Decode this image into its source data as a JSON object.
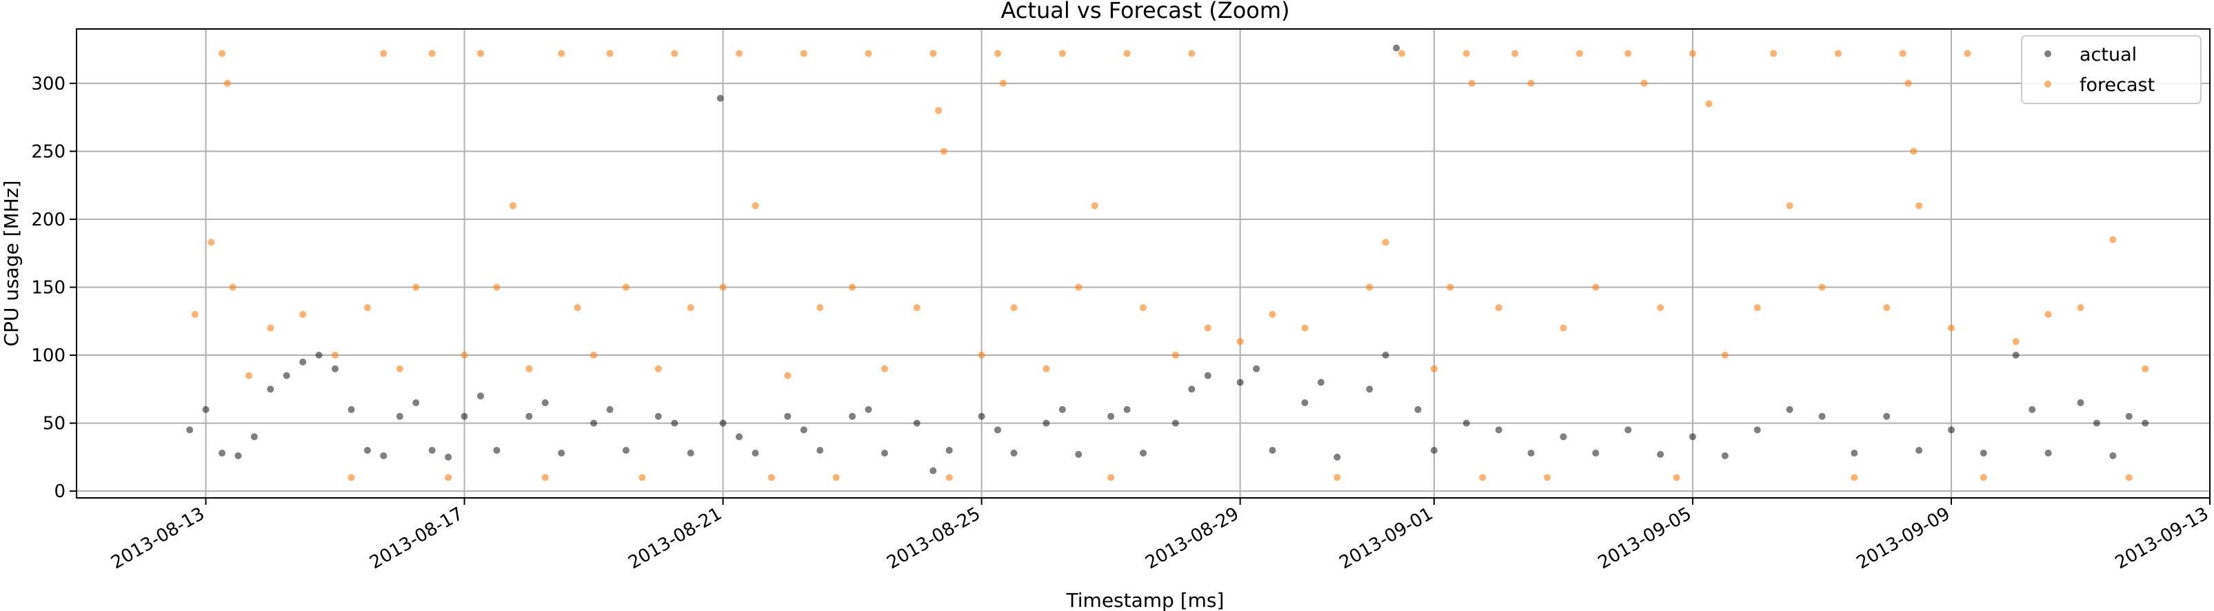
{
  "chart_data": {
    "type": "scatter",
    "title": "Actual vs Forecast (Zoom)",
    "xlabel": "Timestamp [ms]",
    "ylabel": "CPU usage [MHz]",
    "xlim": [
      "2013-08-11",
      "2013-09-13"
    ],
    "ylim": [
      -5,
      340
    ],
    "x_ticks": [
      "2013-08-13",
      "2013-08-17",
      "2013-08-21",
      "2013-08-25",
      "2013-08-29",
      "2013-09-01",
      "2013-09-05",
      "2013-09-09",
      "2013-09-13"
    ],
    "y_ticks": [
      0,
      50,
      100,
      150,
      200,
      250,
      300
    ],
    "grid": true,
    "legend_position": "top-right",
    "series": [
      {
        "name": "actual",
        "color": "#000000",
        "points": [
          [
            "2013-08-12 18:00",
            45
          ],
          [
            "2013-08-13 00:00",
            60
          ],
          [
            "2013-08-13 06:00",
            28
          ],
          [
            "2013-08-13 12:00",
            26
          ],
          [
            "2013-08-13 18:00",
            40
          ],
          [
            "2013-08-14 00:00",
            75
          ],
          [
            "2013-08-14 06:00",
            85
          ],
          [
            "2013-08-14 12:00",
            95
          ],
          [
            "2013-08-14 18:00",
            100
          ],
          [
            "2013-08-15 00:00",
            90
          ],
          [
            "2013-08-15 06:00",
            60
          ],
          [
            "2013-08-15 12:00",
            30
          ],
          [
            "2013-08-15 18:00",
            26
          ],
          [
            "2013-08-16 00:00",
            55
          ],
          [
            "2013-08-16 06:00",
            65
          ],
          [
            "2013-08-16 12:00",
            30
          ],
          [
            "2013-08-16 18:00",
            25
          ],
          [
            "2013-08-17 00:00",
            55
          ],
          [
            "2013-08-17 06:00",
            70
          ],
          [
            "2013-08-17 12:00",
            30
          ],
          [
            "2013-08-18 00:00",
            55
          ],
          [
            "2013-08-18 06:00",
            65
          ],
          [
            "2013-08-18 12:00",
            28
          ],
          [
            "2013-08-19 00:00",
            50
          ],
          [
            "2013-08-19 06:00",
            60
          ],
          [
            "2013-08-19 12:00",
            30
          ],
          [
            "2013-08-20 00:00",
            55
          ],
          [
            "2013-08-20 06:00",
            50
          ],
          [
            "2013-08-20 12:00",
            28
          ],
          [
            "2013-08-20 23:00",
            289
          ],
          [
            "2013-08-21 00:00",
            50
          ],
          [
            "2013-08-21 06:00",
            40
          ],
          [
            "2013-08-21 12:00",
            28
          ],
          [
            "2013-08-22 00:00",
            55
          ],
          [
            "2013-08-22 06:00",
            45
          ],
          [
            "2013-08-22 12:00",
            30
          ],
          [
            "2013-08-23 00:00",
            55
          ],
          [
            "2013-08-23 06:00",
            60
          ],
          [
            "2013-08-23 12:00",
            28
          ],
          [
            "2013-08-24 00:00",
            50
          ],
          [
            "2013-08-24 06:00",
            15
          ],
          [
            "2013-08-24 12:00",
            30
          ],
          [
            "2013-08-25 00:00",
            55
          ],
          [
            "2013-08-25 06:00",
            45
          ],
          [
            "2013-08-25 12:00",
            28
          ],
          [
            "2013-08-26 00:00",
            50
          ],
          [
            "2013-08-26 06:00",
            60
          ],
          [
            "2013-08-26 12:00",
            27
          ],
          [
            "2013-08-27 00:00",
            55
          ],
          [
            "2013-08-27 06:00",
            60
          ],
          [
            "2013-08-27 12:00",
            28
          ],
          [
            "2013-08-28 00:00",
            50
          ],
          [
            "2013-08-28 06:00",
            75
          ],
          [
            "2013-08-28 12:00",
            85
          ],
          [
            "2013-08-29 00:00",
            80
          ],
          [
            "2013-08-29 06:00",
            90
          ],
          [
            "2013-08-29 12:00",
            30
          ],
          [
            "2013-08-30 00:00",
            65
          ],
          [
            "2013-08-30 06:00",
            80
          ],
          [
            "2013-08-30 12:00",
            25
          ],
          [
            "2013-08-31 00:00",
            75
          ],
          [
            "2013-08-31 06:00",
            100
          ],
          [
            "2013-08-31 10:00",
            326
          ],
          [
            "2013-08-31 18:00",
            60
          ],
          [
            "2013-09-01 00:00",
            30
          ],
          [
            "2013-09-01 12:00",
            50
          ],
          [
            "2013-09-02 00:00",
            45
          ],
          [
            "2013-09-02 12:00",
            28
          ],
          [
            "2013-09-03 00:00",
            40
          ],
          [
            "2013-09-03 12:00",
            28
          ],
          [
            "2013-09-04 00:00",
            45
          ],
          [
            "2013-09-04 12:00",
            27
          ],
          [
            "2013-09-05 00:00",
            40
          ],
          [
            "2013-09-05 12:00",
            26
          ],
          [
            "2013-09-06 00:00",
            45
          ],
          [
            "2013-09-06 12:00",
            60
          ],
          [
            "2013-09-07 00:00",
            55
          ],
          [
            "2013-09-07 12:00",
            28
          ],
          [
            "2013-09-08 00:00",
            55
          ],
          [
            "2013-09-08 12:00",
            30
          ],
          [
            "2013-09-09 00:00",
            45
          ],
          [
            "2013-09-09 12:00",
            28
          ],
          [
            "2013-09-10 00:00",
            100
          ],
          [
            "2013-09-10 06:00",
            60
          ],
          [
            "2013-09-10 12:00",
            28
          ],
          [
            "2013-09-11 00:00",
            65
          ],
          [
            "2013-09-11 06:00",
            50
          ],
          [
            "2013-09-11 12:00",
            26
          ],
          [
            "2013-09-11 18:00",
            55
          ],
          [
            "2013-09-12 00:00",
            50
          ]
        ]
      },
      {
        "name": "forecast",
        "color": "#ff7f0e",
        "points": [
          [
            "2013-08-12 20:00",
            130
          ],
          [
            "2013-08-13 02:00",
            183
          ],
          [
            "2013-08-13 06:00",
            322
          ],
          [
            "2013-08-13 08:00",
            300
          ],
          [
            "2013-08-13 10:00",
            150
          ],
          [
            "2013-08-13 16:00",
            85
          ],
          [
            "2013-08-14 00:00",
            120
          ],
          [
            "2013-08-14 12:00",
            130
          ],
          [
            "2013-08-15 00:00",
            100
          ],
          [
            "2013-08-15 06:00",
            10
          ],
          [
            "2013-08-15 12:00",
            135
          ],
          [
            "2013-08-15 18:00",
            322
          ],
          [
            "2013-08-16 00:00",
            90
          ],
          [
            "2013-08-16 06:00",
            150
          ],
          [
            "2013-08-16 12:00",
            322
          ],
          [
            "2013-08-16 18:00",
            10
          ],
          [
            "2013-08-17 00:00",
            100
          ],
          [
            "2013-08-17 06:00",
            322
          ],
          [
            "2013-08-17 12:00",
            150
          ],
          [
            "2013-08-17 18:00",
            210
          ],
          [
            "2013-08-18 00:00",
            90
          ],
          [
            "2013-08-18 06:00",
            10
          ],
          [
            "2013-08-18 12:00",
            322
          ],
          [
            "2013-08-18 18:00",
            135
          ],
          [
            "2013-08-19 00:00",
            100
          ],
          [
            "2013-08-19 06:00",
            322
          ],
          [
            "2013-08-19 12:00",
            150
          ],
          [
            "2013-08-19 18:00",
            10
          ],
          [
            "2013-08-20 00:00",
            90
          ],
          [
            "2013-08-20 06:00",
            322
          ],
          [
            "2013-08-20 12:00",
            135
          ],
          [
            "2013-08-21 00:00",
            150
          ],
          [
            "2013-08-21 06:00",
            322
          ],
          [
            "2013-08-21 12:00",
            210
          ],
          [
            "2013-08-21 18:00",
            10
          ],
          [
            "2013-08-22 00:00",
            85
          ],
          [
            "2013-08-22 06:00",
            322
          ],
          [
            "2013-08-22 12:00",
            135
          ],
          [
            "2013-08-22 18:00",
            10
          ],
          [
            "2013-08-23 00:00",
            150
          ],
          [
            "2013-08-23 06:00",
            322
          ],
          [
            "2013-08-23 12:00",
            90
          ],
          [
            "2013-08-24 00:00",
            135
          ],
          [
            "2013-08-24 06:00",
            322
          ],
          [
            "2013-08-24 08:00",
            280
          ],
          [
            "2013-08-24 10:00",
            250
          ],
          [
            "2013-08-24 12:00",
            10
          ],
          [
            "2013-08-25 00:00",
            100
          ],
          [
            "2013-08-25 06:00",
            322
          ],
          [
            "2013-08-25 08:00",
            300
          ],
          [
            "2013-08-25 12:00",
            135
          ],
          [
            "2013-08-26 00:00",
            90
          ],
          [
            "2013-08-26 06:00",
            322
          ],
          [
            "2013-08-26 12:00",
            150
          ],
          [
            "2013-08-26 18:00",
            210
          ],
          [
            "2013-08-27 00:00",
            10
          ],
          [
            "2013-08-27 06:00",
            322
          ],
          [
            "2013-08-27 12:00",
            135
          ],
          [
            "2013-08-28 00:00",
            100
          ],
          [
            "2013-08-28 06:00",
            322
          ],
          [
            "2013-08-28 12:00",
            120
          ],
          [
            "2013-08-29 00:00",
            110
          ],
          [
            "2013-08-29 12:00",
            130
          ],
          [
            "2013-08-30 00:00",
            120
          ],
          [
            "2013-08-30 12:00",
            10
          ],
          [
            "2013-08-31 00:00",
            150
          ],
          [
            "2013-08-31 06:00",
            183
          ],
          [
            "2013-08-31 12:00",
            322
          ],
          [
            "2013-09-01 00:00",
            90
          ],
          [
            "2013-09-01 06:00",
            150
          ],
          [
            "2013-09-01 12:00",
            322
          ],
          [
            "2013-09-01 14:00",
            300
          ],
          [
            "2013-09-01 18:00",
            10
          ],
          [
            "2013-09-02 00:00",
            135
          ],
          [
            "2013-09-02 06:00",
            322
          ],
          [
            "2013-09-02 12:00",
            300
          ],
          [
            "2013-09-02 18:00",
            10
          ],
          [
            "2013-09-03 00:00",
            120
          ],
          [
            "2013-09-03 06:00",
            322
          ],
          [
            "2013-09-03 12:00",
            150
          ],
          [
            "2013-09-04 00:00",
            322
          ],
          [
            "2013-09-04 06:00",
            300
          ],
          [
            "2013-09-04 12:00",
            135
          ],
          [
            "2013-09-04 18:00",
            10
          ],
          [
            "2013-09-05 00:00",
            322
          ],
          [
            "2013-09-05 06:00",
            285
          ],
          [
            "2013-09-05 12:00",
            100
          ],
          [
            "2013-09-06 00:00",
            135
          ],
          [
            "2013-09-06 06:00",
            322
          ],
          [
            "2013-09-06 12:00",
            210
          ],
          [
            "2013-09-07 00:00",
            150
          ],
          [
            "2013-09-07 06:00",
            322
          ],
          [
            "2013-09-07 12:00",
            10
          ],
          [
            "2013-09-08 00:00",
            135
          ],
          [
            "2013-09-08 06:00",
            322
          ],
          [
            "2013-09-08 08:00",
            300
          ],
          [
            "2013-09-08 10:00",
            250
          ],
          [
            "2013-09-08 12:00",
            210
          ],
          [
            "2013-09-09 00:00",
            120
          ],
          [
            "2013-09-09 06:00",
            322
          ],
          [
            "2013-09-09 12:00",
            10
          ],
          [
            "2013-09-10 00:00",
            110
          ],
          [
            "2013-09-10 12:00",
            130
          ],
          [
            "2013-09-11 00:00",
            135
          ],
          [
            "2013-09-11 12:00",
            185
          ],
          [
            "2013-09-11 18:00",
            10
          ],
          [
            "2013-09-12 00:00",
            90
          ]
        ]
      }
    ]
  }
}
